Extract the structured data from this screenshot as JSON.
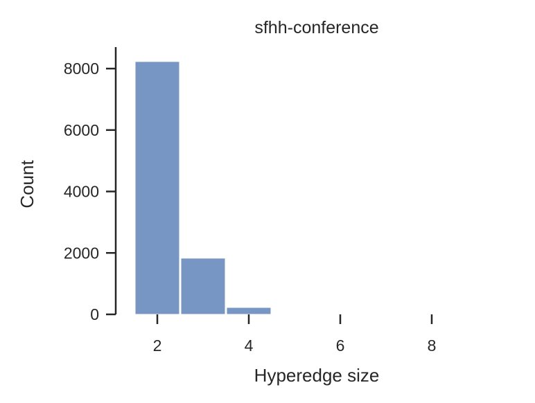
{
  "chart_data": {
    "type": "bar",
    "title": "sfhh-conference",
    "xlabel": "Hyperedge size",
    "ylabel": "Count",
    "bins": [
      {
        "x": 2,
        "value": 8230
      },
      {
        "x": 3,
        "value": 1830
      },
      {
        "x": 4,
        "value": 225
      },
      {
        "x": 5,
        "value": 15
      }
    ],
    "xlim": [
      1.0,
      9.5
    ],
    "ylim": [
      0,
      8700
    ],
    "x_ticks": [
      2,
      4,
      6,
      8
    ],
    "y_ticks": [
      0,
      2000,
      4000,
      6000,
      8000
    ],
    "bar_color": "#7896c4",
    "grid": false,
    "legend": "none"
  }
}
